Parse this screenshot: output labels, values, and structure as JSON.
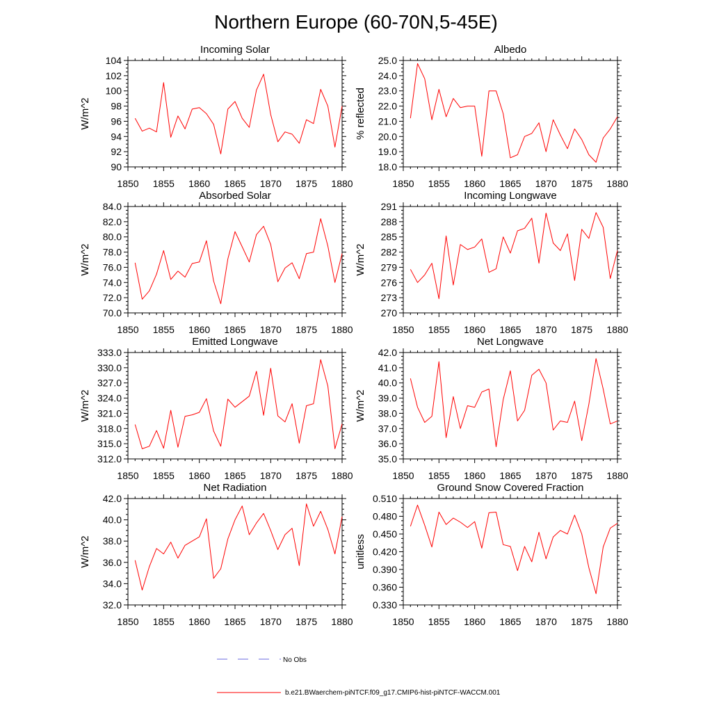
{
  "page": {
    "title": "Northern Europe (60-70N,5-45E)"
  },
  "legend": {
    "obs_label": "No Obs",
    "obs_color": "#6a6adf",
    "model_label": "b.e21.BWaerchem-piNTCF.f09_g17.CMIP6-hist-piNTCF-WACCM.001",
    "model_color": "#ff0000"
  },
  "chart_data": [
    {
      "type": "line",
      "title": "Incoming Solar",
      "ylabel": "W/m^2",
      "xlim": [
        1850,
        1880
      ],
      "ylim": [
        90,
        104
      ],
      "xticks": [
        1850,
        1855,
        1860,
        1865,
        1870,
        1875,
        1880
      ],
      "yticks": [
        90,
        92,
        94,
        96,
        98,
        100,
        102,
        104
      ],
      "ytick_decimals": 0,
      "series": [
        {
          "x": [
            1851,
            1852,
            1853,
            1854,
            1855,
            1856,
            1857,
            1858,
            1859,
            1860,
            1861,
            1862,
            1863,
            1864,
            1865,
            1866,
            1867,
            1868,
            1869,
            1870,
            1871,
            1872,
            1873,
            1874,
            1875,
            1876,
            1877,
            1878,
            1879,
            1880
          ],
          "values": [
            96.4,
            94.7,
            95.1,
            94.6,
            101.1,
            93.9,
            96.7,
            95.0,
            97.6,
            97.8,
            97.0,
            95.6,
            91.7,
            97.6,
            98.6,
            96.4,
            95.2,
            100.1,
            102.2,
            96.9,
            93.3,
            94.6,
            94.3,
            93.1,
            96.2,
            95.7,
            100.2,
            98.0,
            92.6,
            98.0
          ]
        }
      ]
    },
    {
      "type": "line",
      "title": "Albedo",
      "ylabel": "% reflected",
      "xlim": [
        1850,
        1880
      ],
      "ylim": [
        18.0,
        25.0
      ],
      "xticks": [
        1850,
        1855,
        1860,
        1865,
        1870,
        1875,
        1880
      ],
      "yticks": [
        18.0,
        19.0,
        20.0,
        21.0,
        22.0,
        23.0,
        24.0,
        25.0
      ],
      "ytick_decimals": 1,
      "series": [
        {
          "x": [
            1851,
            1852,
            1853,
            1854,
            1855,
            1856,
            1857,
            1858,
            1859,
            1860,
            1861,
            1862,
            1863,
            1864,
            1865,
            1866,
            1867,
            1868,
            1869,
            1870,
            1871,
            1872,
            1873,
            1874,
            1875,
            1876,
            1877,
            1878,
            1879,
            1880
          ],
          "values": [
            21.2,
            24.8,
            23.8,
            21.1,
            23.1,
            21.3,
            22.5,
            21.9,
            22.0,
            22.0,
            18.7,
            23.0,
            23.0,
            21.5,
            18.6,
            18.8,
            20.0,
            20.2,
            20.9,
            19.0,
            21.1,
            20.1,
            19.2,
            20.5,
            19.8,
            18.8,
            18.3,
            19.9,
            20.5,
            21.3
          ]
        }
      ]
    },
    {
      "type": "line",
      "title": "Absorbed Solar",
      "ylabel": "W/m^2",
      "xlim": [
        1850,
        1880
      ],
      "ylim": [
        70.0,
        84.0
      ],
      "xticks": [
        1850,
        1855,
        1860,
        1865,
        1870,
        1875,
        1880
      ],
      "yticks": [
        70.0,
        72.0,
        74.0,
        76.0,
        78.0,
        80.0,
        82.0,
        84.0
      ],
      "ytick_decimals": 1,
      "series": [
        {
          "x": [
            1851,
            1852,
            1853,
            1854,
            1855,
            1856,
            1857,
            1858,
            1859,
            1860,
            1861,
            1862,
            1863,
            1864,
            1865,
            1866,
            1867,
            1868,
            1869,
            1870,
            1871,
            1872,
            1873,
            1874,
            1875,
            1876,
            1877,
            1878,
            1879,
            1880
          ],
          "values": [
            76.6,
            71.8,
            72.9,
            75.1,
            78.2,
            74.4,
            75.5,
            74.7,
            76.5,
            76.7,
            79.5,
            74.2,
            71.2,
            77.1,
            80.7,
            78.7,
            76.7,
            80.3,
            81.4,
            79.0,
            74.1,
            75.9,
            76.6,
            74.5,
            77.8,
            78.0,
            82.4,
            78.8,
            74.0,
            77.8
          ]
        }
      ]
    },
    {
      "type": "line",
      "title": "Incoming Longwave",
      "ylabel": "W/m^2",
      "xlim": [
        1850,
        1880
      ],
      "ylim": [
        270,
        291
      ],
      "xticks": [
        1850,
        1855,
        1860,
        1865,
        1870,
        1875,
        1880
      ],
      "yticks": [
        270,
        273,
        276,
        279,
        282,
        285,
        288,
        291
      ],
      "ytick_decimals": 0,
      "series": [
        {
          "x": [
            1851,
            1852,
            1853,
            1854,
            1855,
            1856,
            1857,
            1858,
            1859,
            1860,
            1861,
            1862,
            1863,
            1864,
            1865,
            1866,
            1867,
            1868,
            1869,
            1870,
            1871,
            1872,
            1873,
            1874,
            1875,
            1876,
            1877,
            1878,
            1879,
            1880
          ],
          "values": [
            278.6,
            276.0,
            277.5,
            279.8,
            272.8,
            285.2,
            275.5,
            283.5,
            282.5,
            283.0,
            284.6,
            278.0,
            278.7,
            285.0,
            281.8,
            286.2,
            286.7,
            288.7,
            279.8,
            289.7,
            283.8,
            282.3,
            285.6,
            276.4,
            286.5,
            284.7,
            289.8,
            286.9,
            276.8,
            282.3
          ]
        }
      ]
    },
    {
      "type": "line",
      "title": "Emitted Longwave",
      "ylabel": "W/m^2",
      "xlim": [
        1850,
        1880
      ],
      "ylim": [
        312.0,
        333.0
      ],
      "xticks": [
        1850,
        1855,
        1860,
        1865,
        1870,
        1875,
        1880
      ],
      "yticks": [
        312.0,
        315.0,
        318.0,
        321.0,
        324.0,
        327.0,
        330.0,
        333.0
      ],
      "ytick_decimals": 1,
      "series": [
        {
          "x": [
            1851,
            1852,
            1853,
            1854,
            1855,
            1856,
            1857,
            1858,
            1859,
            1860,
            1861,
            1862,
            1863,
            1864,
            1865,
            1866,
            1867,
            1868,
            1869,
            1870,
            1871,
            1872,
            1873,
            1874,
            1875,
            1876,
            1877,
            1878,
            1879,
            1880
          ],
          "values": [
            318.8,
            314.0,
            314.5,
            317.6,
            314.1,
            321.6,
            314.3,
            320.4,
            320.7,
            321.2,
            323.9,
            317.5,
            314.5,
            323.8,
            322.2,
            323.3,
            324.4,
            329.3,
            320.6,
            329.9,
            320.5,
            319.3,
            322.9,
            315.1,
            322.5,
            322.9,
            331.6,
            326.4,
            314.0,
            318.9
          ]
        }
      ]
    },
    {
      "type": "line",
      "title": "Net Longwave",
      "ylabel": "W/m^2",
      "xlim": [
        1850,
        1880
      ],
      "ylim": [
        35.0,
        42.0
      ],
      "xticks": [
        1850,
        1855,
        1860,
        1865,
        1870,
        1875,
        1880
      ],
      "yticks": [
        35.0,
        36.0,
        37.0,
        38.0,
        39.0,
        40.0,
        41.0,
        42.0
      ],
      "ytick_decimals": 1,
      "series": [
        {
          "x": [
            1851,
            1852,
            1853,
            1854,
            1855,
            1856,
            1857,
            1858,
            1859,
            1860,
            1861,
            1862,
            1863,
            1864,
            1865,
            1866,
            1867,
            1868,
            1869,
            1870,
            1871,
            1872,
            1873,
            1874,
            1875,
            1876,
            1877,
            1878,
            1879,
            1880
          ],
          "values": [
            40.3,
            38.4,
            37.4,
            37.8,
            41.4,
            36.4,
            39.1,
            37.0,
            38.5,
            38.4,
            39.4,
            39.6,
            35.8,
            38.9,
            40.8,
            37.5,
            38.2,
            40.5,
            40.9,
            40.0,
            36.9,
            37.5,
            37.4,
            38.8,
            36.2,
            38.6,
            41.6,
            39.6,
            37.3,
            37.5
          ]
        }
      ]
    },
    {
      "type": "line",
      "title": "Net Radiation",
      "ylabel": "W/m^2",
      "xlim": [
        1850,
        1880
      ],
      "ylim": [
        32.0,
        42.0
      ],
      "xticks": [
        1850,
        1855,
        1860,
        1865,
        1870,
        1875,
        1880
      ],
      "yticks": [
        32.0,
        34.0,
        36.0,
        38.0,
        40.0,
        42.0
      ],
      "ytick_decimals": 1,
      "series": [
        {
          "x": [
            1851,
            1852,
            1853,
            1854,
            1855,
            1856,
            1857,
            1858,
            1859,
            1860,
            1861,
            1862,
            1863,
            1864,
            1865,
            1866,
            1867,
            1868,
            1869,
            1870,
            1871,
            1872,
            1873,
            1874,
            1875,
            1876,
            1877,
            1878,
            1879,
            1880
          ],
          "values": [
            36.2,
            33.4,
            35.6,
            37.3,
            36.8,
            37.9,
            36.4,
            37.6,
            38.0,
            38.4,
            40.1,
            34.5,
            35.4,
            38.2,
            40.0,
            41.3,
            38.6,
            39.7,
            40.6,
            39.0,
            37.2,
            38.6,
            39.2,
            35.7,
            41.5,
            39.4,
            40.8,
            39.1,
            36.8,
            40.3
          ]
        }
      ]
    },
    {
      "type": "line",
      "title": "Ground Snow Covered Fraction",
      "ylabel": "unitless",
      "xlim": [
        1850,
        1880
      ],
      "ylim": [
        0.33,
        0.51
      ],
      "xticks": [
        1850,
        1855,
        1860,
        1865,
        1870,
        1875,
        1880
      ],
      "yticks": [
        0.33,
        0.36,
        0.39,
        0.42,
        0.45,
        0.48,
        0.51
      ],
      "ytick_decimals": 3,
      "series": [
        {
          "x": [
            1851,
            1852,
            1853,
            1854,
            1855,
            1856,
            1857,
            1858,
            1859,
            1860,
            1861,
            1862,
            1863,
            1864,
            1865,
            1866,
            1867,
            1868,
            1869,
            1870,
            1871,
            1872,
            1873,
            1874,
            1875,
            1876,
            1877,
            1878,
            1879,
            1880
          ],
          "values": [
            0.463,
            0.499,
            0.465,
            0.428,
            0.487,
            0.466,
            0.477,
            0.47,
            0.461,
            0.471,
            0.426,
            0.486,
            0.487,
            0.432,
            0.429,
            0.388,
            0.429,
            0.403,
            0.453,
            0.408,
            0.445,
            0.456,
            0.45,
            0.482,
            0.45,
            0.393,
            0.349,
            0.428,
            0.46,
            0.468
          ]
        }
      ]
    }
  ]
}
